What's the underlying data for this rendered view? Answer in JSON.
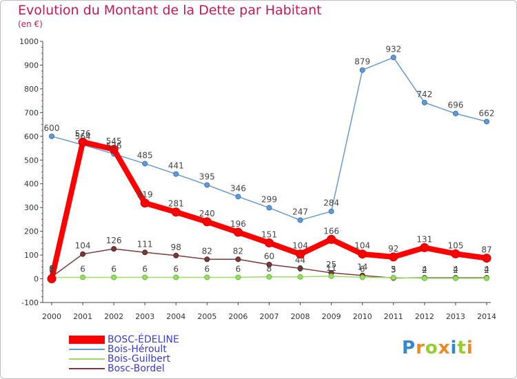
{
  "title": "Evolution du Montant de la Dette par Habitant",
  "unit": "(en €)",
  "logo": "Proxiti",
  "colors": {
    "title": "#c2185b",
    "legend_text": "#3a3acd",
    "axis": "#444444"
  },
  "chart_data": {
    "type": "line",
    "x": [
      2000,
      2001,
      2002,
      2003,
      2004,
      2005,
      2006,
      2007,
      2008,
      2009,
      2010,
      2011,
      2012,
      2013,
      2014
    ],
    "ylim": [
      -100,
      1000
    ],
    "yticks": [
      -100,
      0,
      100,
      200,
      300,
      400,
      500,
      600,
      700,
      800,
      900,
      1000
    ],
    "grid": false,
    "legend_position": "bottom-left",
    "series": [
      {
        "name": "BOSC-ÉDELINE",
        "color": "#ff0000",
        "marker": "#cc0000",
        "width": 8,
        "r": 6,
        "values": [
          0,
          576,
          545,
          319,
          281,
          240,
          196,
          151,
          104,
          166,
          104,
          92,
          131,
          105,
          87
        ],
        "labels": [
          "0",
          "576",
          "545",
          "319",
          "281",
          "240",
          "196",
          "151",
          "104",
          "166",
          "104",
          "92",
          "131",
          "105",
          "87"
        ]
      },
      {
        "name": "Bois-Héroult",
        "color": "#6699cc",
        "marker": "#3377bb",
        "width": 1.5,
        "r": 3.5,
        "values": [
          600,
          564,
          526,
          485,
          441,
          395,
          346,
          299,
          247,
          284,
          879,
          932,
          742,
          696,
          662
        ],
        "labels": [
          "600",
          "564",
          "526",
          "485",
          "441",
          "395",
          "346",
          "299",
          "247",
          "284",
          "879",
          "932",
          "742",
          "696",
          "662"
        ]
      },
      {
        "name": "Bois-Guilbert",
        "color": "#99dd66",
        "marker": "#66bb33",
        "width": 1.5,
        "r": 3.5,
        "values": [
          6,
          6,
          6,
          6,
          6,
          6,
          6,
          8,
          8,
          11,
          6,
          5,
          2,
          2,
          2
        ],
        "labels": [
          "6",
          "6",
          "6",
          "6",
          "6",
          "6",
          "6",
          "8",
          "8",
          "11",
          "6",
          "5",
          "2",
          "2",
          "2"
        ]
      },
      {
        "name": "Bosc-Bordel",
        "color": "#7a3a3a",
        "marker": "#552222",
        "width": 1.5,
        "r": 3.5,
        "values": [
          8,
          104,
          126,
          111,
          98,
          82,
          82,
          60,
          44,
          25,
          14,
          3,
          4,
          4,
          4
        ],
        "labels": [
          "8",
          "104",
          "126",
          "111",
          "98",
          "82",
          "82",
          "60",
          "44",
          "25",
          "14",
          "3",
          "4",
          "4",
          "4"
        ]
      }
    ]
  }
}
